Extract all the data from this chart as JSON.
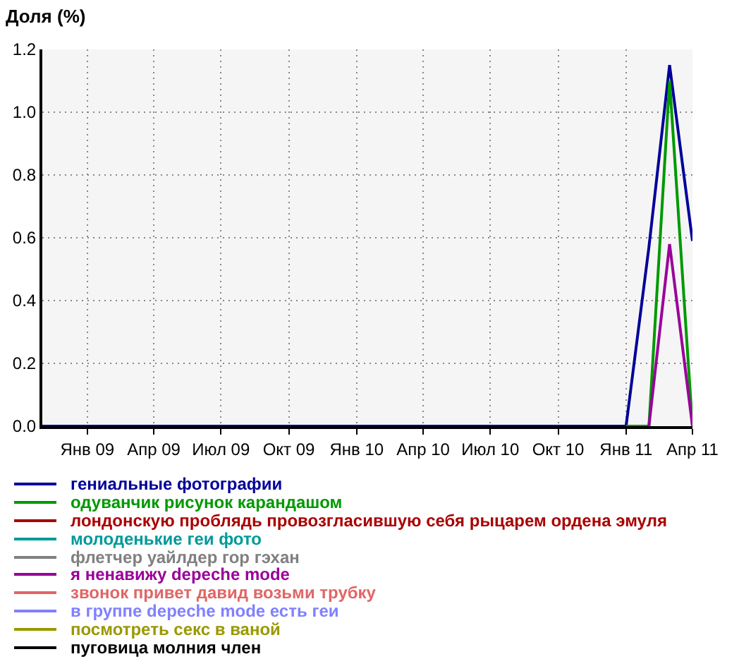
{
  "chart_data": {
    "type": "line",
    "ylabel": "Доля (%)",
    "x": [
      "2008-11",
      "2008-12",
      "2009-01",
      "2009-02",
      "2009-03",
      "2009-04",
      "2009-05",
      "2009-06",
      "2009-07",
      "2009-08",
      "2009-09",
      "2009-10",
      "2009-11",
      "2009-12",
      "2010-01",
      "2010-02",
      "2010-03",
      "2010-04",
      "2010-05",
      "2010-06",
      "2010-07",
      "2010-08",
      "2010-09",
      "2010-10",
      "2010-11",
      "2010-12",
      "2011-01",
      "2011-02",
      "2011-03",
      "2011-04"
    ],
    "series": [
      {
        "name": "гениальные фотографии",
        "color": "#000099",
        "values": [
          0,
          0,
          0,
          0,
          0,
          0,
          0,
          0,
          0,
          0,
          0,
          0,
          0,
          0,
          0,
          0,
          0,
          0,
          0,
          0,
          0,
          0,
          0,
          0,
          0,
          0,
          0,
          0.57,
          1.15,
          0.59
        ]
      },
      {
        "name": "одуванчик рисунок карандашом",
        "color": "#009900",
        "x": [
          "2011-01",
          "2011-02",
          "2011-03",
          "2011-04"
        ],
        "values": [
          0,
          0,
          1.1,
          0
        ]
      },
      {
        "name": "лондонскую проблядь провозгласившую себя рыцарем ордена эмуля",
        "color": "#aa0000",
        "values": [
          null,
          null,
          null,
          null,
          null,
          null,
          null,
          null,
          null,
          null,
          null,
          null,
          null,
          null,
          null,
          null,
          null,
          null,
          null,
          null,
          null,
          null,
          null,
          null,
          null,
          null,
          null,
          null,
          null,
          null
        ]
      },
      {
        "name": "молоденькие геи фото",
        "color": "#009999",
        "values": [
          null,
          null,
          null,
          null,
          null,
          null,
          null,
          null,
          null,
          null,
          null,
          null,
          null,
          null,
          null,
          null,
          null,
          null,
          null,
          null,
          null,
          null,
          null,
          null,
          null,
          null,
          null,
          null,
          null,
          null
        ]
      },
      {
        "name": "флетчер уайлдер гор гэхан",
        "color": "#808080",
        "values": [
          null,
          null,
          null,
          null,
          null,
          null,
          null,
          null,
          null,
          null,
          null,
          null,
          null,
          null,
          null,
          null,
          null,
          null,
          null,
          null,
          null,
          null,
          null,
          null,
          null,
          null,
          null,
          null,
          null,
          null
        ]
      },
      {
        "name": "я ненавижу depeche mode",
        "color": "#990099",
        "x": [
          "2011-02",
          "2011-03",
          "2011-04"
        ],
        "values": [
          0,
          0.58,
          0
        ]
      },
      {
        "name": "звонок привет давид возьми трубку",
        "color": "#e06666",
        "values": [
          null,
          null,
          null,
          null,
          null,
          null,
          null,
          null,
          null,
          null,
          null,
          null,
          null,
          null,
          null,
          null,
          null,
          null,
          null,
          null,
          null,
          null,
          null,
          null,
          null,
          null,
          null,
          null,
          null,
          null
        ]
      },
      {
        "name": "в группе depeche mode есть геи",
        "color": "#8080ff",
        "values": [
          null,
          null,
          null,
          null,
          null,
          null,
          null,
          null,
          null,
          null,
          null,
          null,
          null,
          null,
          null,
          null,
          null,
          null,
          null,
          null,
          null,
          null,
          null,
          null,
          null,
          null,
          null,
          null,
          null,
          null
        ]
      },
      {
        "name": "посмотреть секс в ваной",
        "color": "#999900",
        "values": [
          null,
          null,
          null,
          null,
          null,
          null,
          null,
          null,
          null,
          null,
          null,
          null,
          null,
          null,
          null,
          null,
          null,
          null,
          null,
          null,
          null,
          null,
          null,
          null,
          null,
          null,
          null,
          null,
          null,
          null
        ]
      },
      {
        "name": "пуговица молния член",
        "color": "#000000",
        "values": [
          null,
          null,
          null,
          null,
          null,
          null,
          null,
          null,
          null,
          null,
          null,
          null,
          null,
          null,
          null,
          null,
          null,
          null,
          null,
          null,
          null,
          null,
          null,
          null,
          null,
          null,
          null,
          null,
          null,
          null
        ]
      }
    ],
    "xlim": [
      "2008-11",
      "2011-04"
    ],
    "xticks": [
      {
        "value": "2009-01",
        "label": "Янв 09"
      },
      {
        "value": "2009-04",
        "label": "Апр 09"
      },
      {
        "value": "2009-07",
        "label": "Июл 09"
      },
      {
        "value": "2009-10",
        "label": "Окт 09"
      },
      {
        "value": "2010-01",
        "label": "Янв 10"
      },
      {
        "value": "2010-04",
        "label": "Апр 10"
      },
      {
        "value": "2010-07",
        "label": "Июл 10"
      },
      {
        "value": "2010-10",
        "label": "Окт 10"
      },
      {
        "value": "2011-01",
        "label": "Янв 11"
      },
      {
        "value": "2011-04",
        "label": "Апр 11"
      }
    ],
    "ylim": [
      0,
      1.2
    ],
    "yticks": [
      {
        "value": 0,
        "label": "0.0"
      },
      0.2,
      0.4,
      0.6,
      0.8,
      {
        "value": 1,
        "label": "1.0"
      },
      1.2
    ],
    "grid": true,
    "legend": "bottom"
  }
}
